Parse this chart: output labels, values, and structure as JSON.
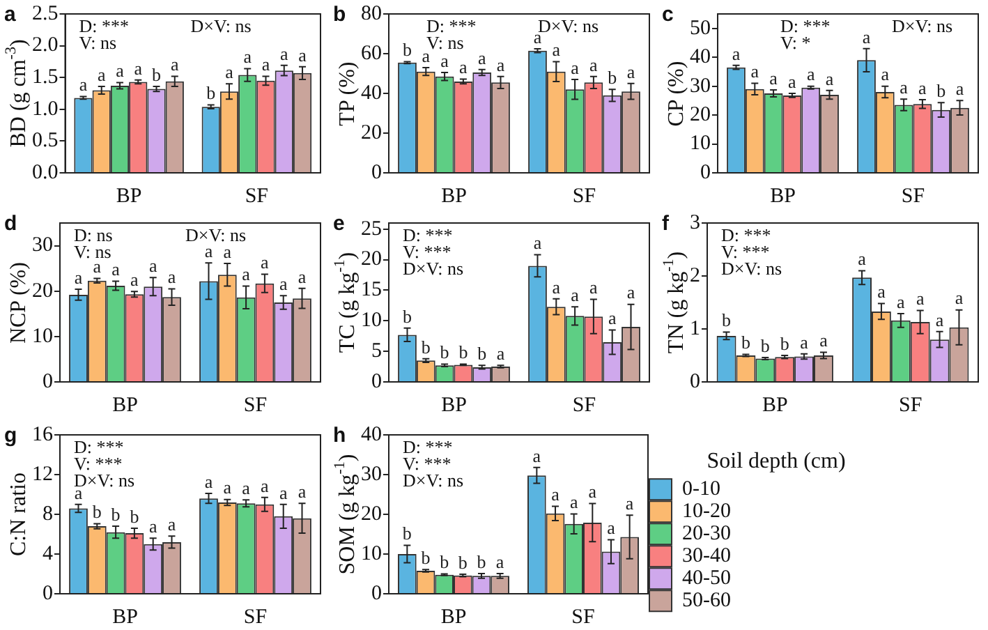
{
  "chart_data": [
    {
      "type": "bar",
      "title": "a",
      "ylabel": "BD (g cm$^{-3}$)",
      "categories": [
        "BP",
        "SF"
      ],
      "ylim": [
        0,
        2.5
      ],
      "yticks": [
        {
          "value": 0,
          "label": "0.0"
        },
        {
          "value": 0.5,
          "label": "0.5"
        },
        {
          "value": 1,
          "label": "1.0"
        },
        {
          "value": 1.5,
          "label": "1.5"
        },
        {
          "value": 2,
          "label": "2.0"
        },
        {
          "value": 2.5,
          "label": "2.5"
        }
      ],
      "annotations": [
        "D: ***",
        "V: ns",
        "D×V: ns"
      ],
      "series": [
        {
          "color": "#5ab4e0",
          "values": [
            1.18,
            1.04
          ],
          "errors": [
            0.02,
            0.03
          ],
          "value_labels": [
            "a",
            "b"
          ]
        },
        {
          "color": "#fbb96f",
          "values": [
            1.3,
            1.28
          ],
          "errors": [
            0.06,
            0.12
          ],
          "value_labels": [
            "a",
            "a"
          ]
        },
        {
          "color": "#5ece84",
          "values": [
            1.37,
            1.54
          ],
          "errors": [
            0.05,
            0.1
          ],
          "value_labels": [
            "a",
            "a"
          ]
        },
        {
          "color": "#f88080",
          "values": [
            1.43,
            1.45
          ],
          "errors": [
            0.03,
            0.07
          ],
          "value_labels": [
            "a",
            "a"
          ]
        },
        {
          "color": "#cfa8ec",
          "values": [
            1.32,
            1.61
          ],
          "errors": [
            0.04,
            0.08
          ],
          "value_labels": [
            "b",
            "a"
          ]
        },
        {
          "color": "#c9a49b",
          "values": [
            1.44,
            1.57
          ],
          "errors": [
            0.08,
            0.1
          ],
          "value_labels": [
            "a",
            "a"
          ]
        }
      ]
    },
    {
      "type": "bar",
      "title": "b",
      "ylabel": "TP (%)",
      "categories": [
        "BP",
        "SF"
      ],
      "ylim": [
        0,
        80
      ],
      "yticks": [
        0,
        20,
        40,
        60,
        80
      ],
      "annotations": [
        "D: ***",
        "V: ns",
        "D×V: ns"
      ],
      "series": [
        {
          "color": "#5ab4e0",
          "values": [
            55.5,
            61.5
          ],
          "errors": [
            0.5,
            1
          ],
          "value_labels": [
            "b",
            "a"
          ]
        },
        {
          "color": "#fbb96f",
          "values": [
            51,
            51
          ],
          "errors": [
            2,
            5
          ],
          "value_labels": [
            "a",
            "a"
          ]
        },
        {
          "color": "#5ece84",
          "values": [
            48.5,
            42
          ],
          "errors": [
            2,
            5
          ],
          "value_labels": [
            "a",
            "a"
          ]
        },
        {
          "color": "#f88080",
          "values": [
            46,
            45.5
          ],
          "errors": [
            1.2,
            3
          ],
          "value_labels": [
            "a",
            "a"
          ]
        },
        {
          "color": "#cfa8ec",
          "values": [
            50.5,
            39
          ],
          "errors": [
            1.5,
            3
          ],
          "value_labels": [
            "a",
            "b"
          ]
        },
        {
          "color": "#c9a49b",
          "values": [
            45.5,
            41
          ],
          "errors": [
            3,
            4
          ],
          "value_labels": [
            "a",
            "a"
          ]
        }
      ]
    },
    {
      "type": "bar",
      "title": "c",
      "ylabel": "CP (%)",
      "categories": [
        "BP",
        "SF"
      ],
      "ylim": [
        0,
        55
      ],
      "yticks": [
        0,
        10,
        20,
        30,
        40,
        50
      ],
      "annotations": [
        "D: ***",
        "V: *",
        "D×V: ns"
      ],
      "series": [
        {
          "color": "#5ab4e0",
          "values": [
            36.5,
            39
          ],
          "errors": [
            0.7,
            4
          ],
          "value_labels": [
            "a",
            "a"
          ]
        },
        {
          "color": "#fbb96f",
          "values": [
            29,
            28
          ],
          "errors": [
            2,
            2
          ],
          "value_labels": [
            "a",
            "a"
          ]
        },
        {
          "color": "#5ece84",
          "values": [
            27.5,
            23.5
          ],
          "errors": [
            1.2,
            2
          ],
          "value_labels": [
            "a",
            "a"
          ]
        },
        {
          "color": "#f88080",
          "values": [
            26.8,
            23.8
          ],
          "errors": [
            0.7,
            1.5
          ],
          "value_labels": [
            "a",
            "a"
          ]
        },
        {
          "color": "#cfa8ec",
          "values": [
            29.5,
            21.8
          ],
          "errors": [
            0.5,
            2.5
          ],
          "value_labels": [
            "a",
            "b"
          ]
        },
        {
          "color": "#c9a49b",
          "values": [
            27,
            22.5
          ],
          "errors": [
            1.5,
            2.5
          ],
          "value_labels": [
            "a",
            "a"
          ]
        }
      ]
    },
    {
      "type": "bar",
      "title": "d",
      "ylabel": "NCP (%)",
      "categories": [
        "BP",
        "SF"
      ],
      "ylim": [
        0,
        35
      ],
      "yticks": [
        0,
        10,
        20,
        30
      ],
      "annotations": [
        "D: ns",
        "V: ns",
        "D×V: ns"
      ],
      "series": [
        {
          "color": "#5ab4e0",
          "values": [
            19.2,
            22.2
          ],
          "errors": [
            1.2,
            4
          ],
          "value_labels": [
            "a",
            "a"
          ]
        },
        {
          "color": "#fbb96f",
          "values": [
            22.3,
            23.6
          ],
          "errors": [
            0.5,
            2.5
          ],
          "value_labels": [
            "a",
            "a"
          ]
        },
        {
          "color": "#5ece84",
          "values": [
            21.2,
            18.6
          ],
          "errors": [
            1,
            2.5
          ],
          "value_labels": [
            "a",
            "a"
          ]
        },
        {
          "color": "#f88080",
          "values": [
            19.3,
            21.7
          ],
          "errors": [
            0.6,
            2
          ],
          "value_labels": [
            "a",
            "a"
          ]
        },
        {
          "color": "#cfa8ec",
          "values": [
            21,
            17.5
          ],
          "errors": [
            2,
            1.5
          ],
          "value_labels": [
            "a",
            "a"
          ]
        },
        {
          "color": "#c9a49b",
          "values": [
            18.7,
            18.4
          ],
          "errors": [
            1.8,
            2.2
          ],
          "value_labels": [
            "a",
            "a"
          ]
        }
      ]
    },
    {
      "type": "bar",
      "title": "e",
      "ylabel": "TC (g kg$^{-1}$)",
      "categories": [
        "BP",
        "SF"
      ],
      "ylim": [
        0,
        26
      ],
      "yticks": [
        0,
        5,
        10,
        15,
        20,
        25
      ],
      "annotations": [
        "D: ***",
        "V: ***",
        "D×V: ns"
      ],
      "series": [
        {
          "color": "#5ab4e0",
          "values": [
            7.7,
            19
          ],
          "errors": [
            1.1,
            1.8
          ],
          "value_labels": [
            "b",
            "a"
          ]
        },
        {
          "color": "#fbb96f",
          "values": [
            3.5,
            12.3
          ],
          "errors": [
            0.3,
            1.3
          ],
          "value_labels": [
            "b",
            "a"
          ]
        },
        {
          "color": "#5ece84",
          "values": [
            2.7,
            10.8
          ],
          "errors": [
            0.2,
            1.5
          ],
          "value_labels": [
            "b",
            "a"
          ]
        },
        {
          "color": "#f88080",
          "values": [
            2.8,
            10.7
          ],
          "errors": [
            0.1,
            2.8
          ],
          "value_labels": [
            "b",
            "a"
          ]
        },
        {
          "color": "#cfa8ec",
          "values": [
            2.4,
            6.5
          ],
          "errors": [
            0.3,
            2
          ],
          "value_labels": [
            "b",
            "a"
          ]
        },
        {
          "color": "#c9a49b",
          "values": [
            2.5,
            9
          ],
          "errors": [
            0.2,
            3.7
          ],
          "value_labels": [
            "a",
            "a"
          ]
        }
      ]
    },
    {
      "type": "bar",
      "title": "f",
      "ylabel": "TN (g kg$^{-1}$)",
      "categories": [
        "BP",
        "SF"
      ],
      "ylim": [
        0,
        3
      ],
      "yticks": [
        0,
        1,
        2,
        3
      ],
      "annotations": [
        "D: ***",
        "V: ***",
        "D×V: ns"
      ],
      "series": [
        {
          "color": "#5ab4e0",
          "values": [
            0.87,
            1.97
          ],
          "errors": [
            0.07,
            0.13
          ],
          "value_labels": [
            "b",
            "a"
          ]
        },
        {
          "color": "#fbb96f",
          "values": [
            0.5,
            1.33
          ],
          "errors": [
            0.02,
            0.15
          ],
          "value_labels": [
            "b",
            "a"
          ]
        },
        {
          "color": "#5ece84",
          "values": [
            0.44,
            1.16
          ],
          "errors": [
            0.02,
            0.13
          ],
          "value_labels": [
            "b",
            "a"
          ]
        },
        {
          "color": "#f88080",
          "values": [
            0.47,
            1.13
          ],
          "errors": [
            0.03,
            0.22
          ],
          "value_labels": [
            "b",
            "a"
          ]
        },
        {
          "color": "#cfa8ec",
          "values": [
            0.48,
            0.8
          ],
          "errors": [
            0.05,
            0.15
          ],
          "value_labels": [
            "a",
            "a"
          ]
        },
        {
          "color": "#c9a49b",
          "values": [
            0.5,
            1.03
          ],
          "errors": [
            0.06,
            0.33
          ],
          "value_labels": [
            "a",
            "a"
          ]
        }
      ]
    },
    {
      "type": "bar",
      "title": "g",
      "ylabel": "C:N ratio",
      "categories": [
        "BP",
        "SF"
      ],
      "ylim": [
        0,
        16
      ],
      "yticks": [
        0,
        4,
        8,
        12,
        16
      ],
      "annotations": [
        "D: ***",
        "V: ***",
        "D×V: ns"
      ],
      "series": [
        {
          "color": "#5ab4e0",
          "values": [
            8.6,
            9.6
          ],
          "errors": [
            0.4,
            0.5
          ],
          "value_labels": [
            "a",
            "a"
          ]
        },
        {
          "color": "#fbb96f",
          "values": [
            6.8,
            9.2
          ],
          "errors": [
            0.25,
            0.3
          ],
          "value_labels": [
            "b",
            "a"
          ]
        },
        {
          "color": "#5ece84",
          "values": [
            6.2,
            9.1
          ],
          "errors": [
            0.6,
            0.35
          ],
          "value_labels": [
            "b",
            "a"
          ]
        },
        {
          "color": "#f88080",
          "values": [
            6.1,
            9
          ],
          "errors": [
            0.5,
            0.7
          ],
          "value_labels": [
            "b",
            "a"
          ]
        },
        {
          "color": "#cfa8ec",
          "values": [
            5,
            7.8
          ],
          "errors": [
            0.6,
            1.2
          ],
          "value_labels": [
            "a",
            "a"
          ]
        },
        {
          "color": "#c9a49b",
          "values": [
            5.2,
            7.6
          ],
          "errors": [
            0.6,
            1.5
          ],
          "value_labels": [
            "a",
            "a"
          ]
        }
      ]
    },
    {
      "type": "bar",
      "title": "h",
      "ylabel": "SOM (g kg$^{-1}$)",
      "categories": [
        "BP",
        "SF"
      ],
      "ylim": [
        0,
        40
      ],
      "yticks": [
        0,
        10,
        20,
        30,
        40
      ],
      "annotations": [
        "D: ***",
        "V: ***",
        "D×V: ns"
      ],
      "legend": "right",
      "legend_title": "Soil depth (cm)",
      "series": [
        {
          "name": "0-10",
          "color": "#5ab4e0",
          "values": [
            10,
            29.8
          ],
          "errors": [
            2.2,
            2
          ],
          "value_labels": [
            "b",
            "a"
          ]
        },
        {
          "name": "10-20",
          "color": "#fbb96f",
          "values": [
            5.8,
            20.2
          ],
          "errors": [
            0.3,
            1.8
          ],
          "value_labels": [
            "b",
            "a"
          ]
        },
        {
          "name": "20-30",
          "color": "#5ece84",
          "values": [
            4.8,
            17.6
          ],
          "errors": [
            0.2,
            2.5
          ],
          "value_labels": [
            "b",
            "a"
          ]
        },
        {
          "name": "30-40",
          "color": "#f88080",
          "values": [
            4.6,
            17.9
          ],
          "errors": [
            0.3,
            4.8
          ],
          "value_labels": [
            "b",
            "a"
          ]
        },
        {
          "name": "40-50",
          "color": "#cfa8ec",
          "values": [
            4.5,
            10.6
          ],
          "errors": [
            0.6,
            3
          ],
          "value_labels": [
            "b",
            "a"
          ]
        },
        {
          "name": "50-60",
          "color": "#c9a49b",
          "values": [
            4.5,
            14.3
          ],
          "errors": [
            0.6,
            5.5
          ],
          "value_labels": [
            "a",
            "a"
          ]
        }
      ]
    }
  ]
}
